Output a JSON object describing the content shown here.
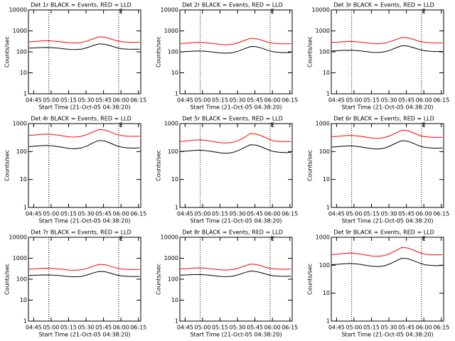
{
  "chart_data": [
    {
      "type": "line",
      "title": "Det 1r BLACK = Events, RED = LLD",
      "xlabel": "Start Time (21-Oct-05 04:38:20)",
      "ylabel": "Counts/sec",
      "log": true,
      "xlim": [
        280.5,
        377
      ],
      "ylim": [
        1,
        10000
      ],
      "yticks": [
        1,
        10,
        100,
        1000,
        10000
      ],
      "xticks": [
        {
          "value": 285,
          "label": "04:45"
        },
        {
          "value": 300,
          "label": "05:00"
        },
        {
          "value": 315,
          "label": "05:15"
        },
        {
          "value": 330,
          "label": "05:30"
        },
        {
          "value": 345,
          "label": "05:45"
        },
        {
          "value": 360,
          "label": "06:00"
        },
        {
          "value": 375,
          "label": "06:15"
        }
      ],
      "vlines": [
        298,
        358
      ],
      "annotations": [
        {
          "text": "E",
          "x": 360
        }
      ],
      "x": [
        281,
        286,
        291,
        296,
        301,
        306,
        311,
        316,
        321,
        326,
        331,
        336,
        341,
        346,
        351,
        356,
        361,
        366,
        371,
        376
      ],
      "series": [
        {
          "color": "#000000",
          "values": [
            150,
            155,
            160,
            162,
            158,
            150,
            140,
            130,
            128,
            135,
            160,
            200,
            240,
            230,
            195,
            160,
            140,
            135,
            132,
            135
          ]
        },
        {
          "color": "#ff0000",
          "values": [
            300,
            310,
            330,
            340,
            330,
            310,
            290,
            270,
            265,
            280,
            330,
            420,
            520,
            500,
            420,
            340,
            300,
            290,
            285,
            290
          ]
        }
      ]
    },
    {
      "type": "line",
      "title": "Det 2r BLACK = Events, RED = LLD",
      "xlabel": "Start Time (21-Oct-05 04:38:20)",
      "ylabel": "Counts/sec",
      "log": true,
      "xlim": [
        280.5,
        377
      ],
      "ylim": [
        1,
        10000
      ],
      "yticks": [
        1,
        10,
        100,
        1000,
        10000
      ],
      "xticks": [
        {
          "value": 285,
          "label": "04:45"
        },
        {
          "value": 300,
          "label": "05:00"
        },
        {
          "value": 315,
          "label": "05:15"
        },
        {
          "value": 330,
          "label": "05:30"
        },
        {
          "value": 345,
          "label": "05:45"
        },
        {
          "value": 360,
          "label": "06:00"
        },
        {
          "value": 375,
          "label": "06:15"
        }
      ],
      "vlines": [
        298,
        358
      ],
      "annotations": [
        {
          "text": "E",
          "x": 360
        }
      ],
      "x": [
        281,
        286,
        291,
        296,
        301,
        306,
        311,
        316,
        321,
        326,
        331,
        336,
        341,
        346,
        351,
        356,
        361,
        366,
        371,
        376
      ],
      "series": [
        {
          "color": "#000000",
          "values": [
            100,
            103,
            107,
            110,
            108,
            102,
            95,
            88,
            86,
            92,
            110,
            140,
            180,
            175,
            150,
            120,
            100,
            95,
            92,
            95
          ]
        },
        {
          "color": "#ff0000",
          "values": [
            250,
            258,
            275,
            285,
            278,
            260,
            240,
            222,
            218,
            232,
            275,
            350,
            440,
            425,
            360,
            290,
            255,
            245,
            240,
            245
          ]
        }
      ]
    },
    {
      "type": "line",
      "title": "Det 3r BLACK = Events, RED = LLD",
      "xlabel": "Start Time (21-Oct-05 04:38:20)",
      "ylabel": "Counts/sec",
      "log": true,
      "xlim": [
        280.5,
        377
      ],
      "ylim": [
        1,
        10000
      ],
      "yticks": [
        1,
        10,
        100,
        1000,
        10000
      ],
      "xticks": [
        {
          "value": 285,
          "label": "04:45"
        },
        {
          "value": 300,
          "label": "05:00"
        },
        {
          "value": 315,
          "label": "05:15"
        },
        {
          "value": 330,
          "label": "05:30"
        },
        {
          "value": 345,
          "label": "05:45"
        },
        {
          "value": 360,
          "label": "06:00"
        },
        {
          "value": 375,
          "label": "06:15"
        }
      ],
      "vlines": [
        298,
        358
      ],
      "annotations": [
        {
          "text": "E",
          "x": 360
        }
      ],
      "x": [
        281,
        286,
        291,
        296,
        301,
        306,
        311,
        316,
        321,
        326,
        331,
        336,
        341,
        346,
        351,
        356,
        361,
        366,
        371,
        376
      ],
      "series": [
        {
          "color": "#000000",
          "values": [
            110,
            113,
            118,
            120,
            117,
            110,
            102,
            95,
            93,
            100,
            120,
            155,
            195,
            190,
            160,
            130,
            112,
            106,
            103,
            106
          ]
        },
        {
          "color": "#ff0000",
          "values": [
            280,
            290,
            305,
            315,
            308,
            290,
            268,
            248,
            244,
            258,
            305,
            385,
            480,
            465,
            395,
            320,
            285,
            272,
            268,
            272
          ]
        }
      ]
    },
    {
      "type": "line",
      "title": "Det 4r BLACK = Events, RED = LLD",
      "xlabel": "Start Time (21-Oct-05 04:38:20)",
      "ylabel": "Counts/sec",
      "log": true,
      "xlim": [
        280.5,
        377
      ],
      "ylim": [
        1,
        1000
      ],
      "yticks": [
        1,
        10,
        100,
        1000
      ],
      "xticks": [
        {
          "value": 285,
          "label": "04:45"
        },
        {
          "value": 300,
          "label": "05:00"
        },
        {
          "value": 315,
          "label": "05:15"
        },
        {
          "value": 330,
          "label": "05:30"
        },
        {
          "value": 345,
          "label": "05:45"
        },
        {
          "value": 360,
          "label": "06:00"
        },
        {
          "value": 375,
          "label": "06:15"
        }
      ],
      "vlines": [
        298,
        358
      ],
      "annotations": [
        {
          "text": "E",
          "x": 360
        }
      ],
      "x": [
        281,
        286,
        291,
        296,
        301,
        306,
        311,
        316,
        321,
        326,
        331,
        336,
        341,
        346,
        351,
        356,
        361,
        366,
        371,
        376
      ],
      "series": [
        {
          "color": "#000000",
          "values": [
            150,
            156,
            162,
            165,
            160,
            150,
            138,
            128,
            126,
            134,
            160,
            205,
            250,
            240,
            200,
            162,
            142,
            136,
            133,
            136
          ]
        },
        {
          "color": "#ff0000",
          "values": [
            380,
            392,
            410,
            420,
            410,
            388,
            360,
            335,
            330,
            350,
            410,
            500,
            610,
            590,
            500,
            410,
            370,
            355,
            350,
            355
          ]
        }
      ]
    },
    {
      "type": "line",
      "title": "Det 5r BLACK = Events, RED = LLD",
      "xlabel": "Start Time (21-Oct-05 04:38:20)",
      "ylabel": "Counts/sec",
      "log": true,
      "xlim": [
        280.5,
        377
      ],
      "ylim": [
        1,
        1000
      ],
      "yticks": [
        1,
        10,
        100,
        1000
      ],
      "xticks": [
        {
          "value": 285,
          "label": "04:45"
        },
        {
          "value": 300,
          "label": "05:00"
        },
        {
          "value": 315,
          "label": "05:15"
        },
        {
          "value": 330,
          "label": "05:30"
        },
        {
          "value": 345,
          "label": "05:45"
        },
        {
          "value": 360,
          "label": "06:00"
        },
        {
          "value": 375,
          "label": "06:15"
        }
      ],
      "vlines": [
        298,
        358
      ],
      "annotations": [
        {
          "text": "E",
          "x": 360
        }
      ],
      "x": [
        281,
        286,
        291,
        296,
        301,
        306,
        311,
        316,
        321,
        326,
        331,
        336,
        341,
        346,
        351,
        356,
        361,
        366,
        371,
        376
      ],
      "series": [
        {
          "color": "#000000",
          "values": [
            100,
            104,
            108,
            112,
            110,
            103,
            96,
            89,
            87,
            93,
            110,
            140,
            175,
            170,
            145,
            118,
            100,
            94,
            91,
            94
          ]
        },
        {
          "color": "#ff0000",
          "values": [
            230,
            238,
            252,
            262,
            256,
            240,
            222,
            206,
            202,
            215,
            250,
            320,
            440,
            425,
            360,
            290,
            240,
            230,
            226,
            230
          ]
        }
      ]
    },
    {
      "type": "line",
      "title": "Det 6r BLACK = Events, RED = LLD",
      "xlabel": "Start Time (21-Oct-05 04:38:20)",
      "ylabel": "Counts/sec",
      "log": true,
      "xlim": [
        280.5,
        377
      ],
      "ylim": [
        1,
        1000
      ],
      "yticks": [
        1,
        10,
        100,
        1000
      ],
      "xticks": [
        {
          "value": 285,
          "label": "04:45"
        },
        {
          "value": 300,
          "label": "05:00"
        },
        {
          "value": 315,
          "label": "05:15"
        },
        {
          "value": 330,
          "label": "05:30"
        },
        {
          "value": 345,
          "label": "05:45"
        },
        {
          "value": 360,
          "label": "06:00"
        },
        {
          "value": 375,
          "label": "06:15"
        }
      ],
      "vlines": [
        298,
        358
      ],
      "annotations": [
        {
          "text": "E",
          "x": 360
        }
      ],
      "x": [
        281,
        286,
        291,
        296,
        301,
        306,
        311,
        316,
        321,
        326,
        331,
        336,
        341,
        346,
        351,
        356,
        361,
        366,
        371,
        376
      ],
      "series": [
        {
          "color": "#000000",
          "values": [
            145,
            150,
            156,
            160,
            155,
            146,
            135,
            126,
            124,
            132,
            158,
            200,
            245,
            235,
            198,
            160,
            140,
            134,
            131,
            134
          ]
        },
        {
          "color": "#ff0000",
          "values": [
            340,
            350,
            368,
            378,
            370,
            350,
            325,
            302,
            298,
            315,
            370,
            460,
            580,
            560,
            470,
            380,
            340,
            326,
            322,
            326
          ]
        }
      ]
    },
    {
      "type": "line",
      "title": "Det 7r BLACK = Events, RED = LLD",
      "xlabel": "Start Time (21-Oct-05 04:38:20)",
      "ylabel": "Counts/sec",
      "log": true,
      "xlim": [
        280.5,
        377
      ],
      "ylim": [
        1,
        10000
      ],
      "yticks": [
        1,
        10,
        100,
        1000,
        10000
      ],
      "xticks": [
        {
          "value": 285,
          "label": "04:45"
        },
        {
          "value": 300,
          "label": "05:00"
        },
        {
          "value": 315,
          "label": "05:15"
        },
        {
          "value": 330,
          "label": "05:30"
        },
        {
          "value": 345,
          "label": "05:45"
        },
        {
          "value": 360,
          "label": "06:00"
        },
        {
          "value": 375,
          "label": "06:15"
        }
      ],
      "vlines": [
        298,
        358
      ],
      "annotations": [
        {
          "text": "E",
          "x": 360
        }
      ],
      "x": [
        281,
        286,
        291,
        296,
        301,
        306,
        311,
        316,
        321,
        326,
        331,
        336,
        341,
        346,
        351,
        356,
        361,
        366,
        371,
        376
      ],
      "series": [
        {
          "color": "#000000",
          "values": [
            150,
            154,
            158,
            160,
            157,
            150,
            141,
            132,
            130,
            136,
            160,
            198,
            235,
            228,
            194,
            160,
            142,
            137,
            134,
            136
          ]
        },
        {
          "color": "#ff0000",
          "values": [
            300,
            308,
            325,
            335,
            328,
            310,
            292,
            272,
            268,
            282,
            330,
            415,
            510,
            495,
            418,
            342,
            305,
            295,
            290,
            294
          ]
        }
      ]
    },
    {
      "type": "line",
      "title": "Det 8r BLACK = Events, RED = LLD",
      "xlabel": "Start Time (21-Oct-05 04:38:20)",
      "ylabel": "Counts/sec",
      "log": true,
      "xlim": [
        280.5,
        377
      ],
      "ylim": [
        1,
        10000
      ],
      "yticks": [
        1,
        10,
        100,
        1000,
        10000
      ],
      "xticks": [
        {
          "value": 285,
          "label": "04:45"
        },
        {
          "value": 300,
          "label": "05:00"
        },
        {
          "value": 315,
          "label": "05:15"
        },
        {
          "value": 330,
          "label": "05:30"
        },
        {
          "value": 345,
          "label": "05:45"
        },
        {
          "value": 360,
          "label": "06:00"
        },
        {
          "value": 375,
          "label": "06:15"
        }
      ],
      "vlines": [
        298,
        358
      ],
      "annotations": [
        {
          "text": "E",
          "x": 360
        }
      ],
      "x": [
        281,
        286,
        291,
        296,
        301,
        306,
        311,
        316,
        321,
        326,
        331,
        336,
        341,
        346,
        351,
        356,
        361,
        366,
        371,
        376
      ],
      "series": [
        {
          "color": "#000000",
          "values": [
            155,
            160,
            165,
            168,
            163,
            155,
            144,
            134,
            132,
            140,
            165,
            205,
            245,
            235,
            200,
            165,
            146,
            140,
            137,
            140
          ]
        },
        {
          "color": "#ff0000",
          "values": [
            310,
            318,
            335,
            345,
            338,
            318,
            298,
            278,
            274,
            288,
            338,
            425,
            525,
            505,
            425,
            348,
            310,
            300,
            295,
            300
          ]
        }
      ]
    },
    {
      "type": "line",
      "title": "Det 9r BLACK = Events, RED = LLD",
      "xlabel": "Start Time (21-Oct-05 04:38:20)",
      "ylabel": "Counts/sec",
      "log": true,
      "xlim": [
        280.5,
        377
      ],
      "ylim": [
        1,
        1000
      ],
      "yticks": [
        1,
        10,
        100,
        1000
      ],
      "xticks": [
        {
          "value": 285,
          "label": "04:45"
        },
        {
          "value": 300,
          "label": "05:00"
        },
        {
          "value": 315,
          "label": "05:15"
        },
        {
          "value": 330,
          "label": "05:30"
        },
        {
          "value": 345,
          "label": "05:45"
        },
        {
          "value": 360,
          "label": "06:00"
        },
        {
          "value": 375,
          "label": "06:15"
        }
      ],
      "vlines": [
        298,
        358
      ],
      "annotations": [
        {
          "text": "E",
          "x": 360
        }
      ],
      "x": [
        281,
        286,
        291,
        296,
        301,
        306,
        311,
        316,
        321,
        326,
        331,
        336,
        341,
        346,
        351,
        356,
        361,
        366,
        371,
        376
      ],
      "series": [
        {
          "color": "#000000",
          "values": [
            105,
            108,
            112,
            115,
            112,
            106,
            98,
            91,
            89,
            95,
            112,
            142,
            178,
            172,
            147,
            120,
            104,
            99,
            96,
            99
          ]
        },
        {
          "color": "#ff0000",
          "values": [
            240,
            248,
            262,
            272,
            265,
            248,
            230,
            212,
            208,
            222,
            262,
            335,
            430,
            415,
            350,
            282,
            248,
            238,
            234,
            238
          ]
        }
      ]
    }
  ]
}
